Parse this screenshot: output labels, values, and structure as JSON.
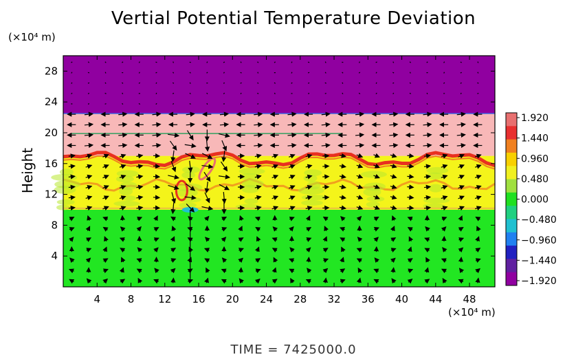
{
  "chart_data": {
    "type": "heatmap",
    "title": "Vertial Potential Temperature Deviation",
    "ylabel": "Height",
    "x_unit_label": "(×10⁴ m)",
    "y_unit_label": "(×10⁴ m)",
    "xlim": [
      0,
      51
    ],
    "ylim": [
      0,
      30
    ],
    "x_ticks": [
      4,
      8,
      12,
      16,
      20,
      24,
      28,
      32,
      36,
      40,
      44,
      48
    ],
    "y_ticks": [
      4,
      8,
      12,
      16,
      20,
      24,
      28
    ],
    "colorbar": {
      "labels": [
        "1.920",
        "1.440",
        "0.960",
        "0.480",
        "0.000",
        "−0.480",
        "−0.960",
        "−1.440",
        "−1.920"
      ],
      "min": -1.92,
      "max": 1.92,
      "colors": [
        "#e87070",
        "#e83030",
        "#f08020",
        "#f8d000",
        "#f0f020",
        "#a0e040",
        "#20e020",
        "#20d080",
        "#20c0d0",
        "#2080f0",
        "#2020c0",
        "#6020a0",
        "#9000a0"
      ]
    },
    "layers": [
      {
        "y_from": 0,
        "y_to": 10,
        "value": 0.0,
        "desc": "green"
      },
      {
        "y_from": 10,
        "y_to": 17,
        "value": 0.96,
        "desc": "yellow with red bands"
      },
      {
        "y_from": 17,
        "y_to": 22.5,
        "value": 1.92,
        "desc": "pink"
      },
      {
        "y_from": 22.5,
        "y_to": 30,
        "value": -1.92,
        "desc": "purple"
      }
    ],
    "vectors": "wind field arrows on regular grid"
  },
  "footer": {
    "time_label": "TIME  =  7425000.0"
  }
}
